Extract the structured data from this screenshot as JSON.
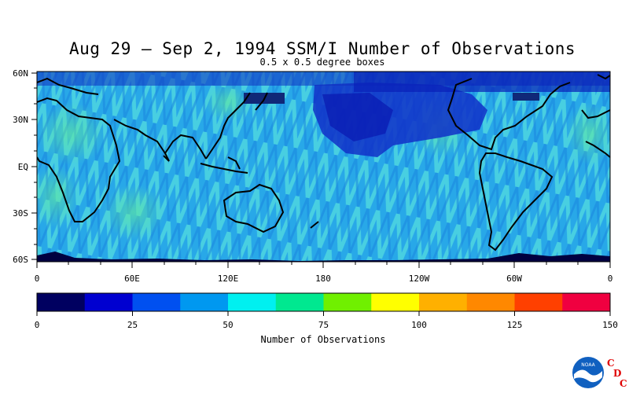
{
  "title": "Aug 29 – Sep 2, 1994 SSM/I Number of Observations",
  "subtitle": "0.5 x 0.5 degree boxes",
  "lat_labels": [
    "60N",
    "30N",
    "EQ",
    "30S",
    "60S"
  ],
  "lon_labels": [
    "0",
    "60E",
    "120E",
    "180",
    "120W",
    "60W",
    "0"
  ],
  "colorbar": {
    "title": "Number of Observations",
    "tick_labels": [
      "0",
      "25",
      "50",
      "75",
      "100",
      "125",
      "150"
    ],
    "colors": [
      "#000060",
      "#0000d0",
      "#0050f0",
      "#0098f0",
      "#00f0f0",
      "#00e890",
      "#70f000",
      "#ffff00",
      "#ffb000",
      "#ff8800",
      "#ff4000",
      "#f00040"
    ]
  },
  "logo": {
    "letters": [
      "C",
      "D",
      "C"
    ],
    "noaa_text": "NOAA",
    "letter_color": "#e00000"
  }
}
